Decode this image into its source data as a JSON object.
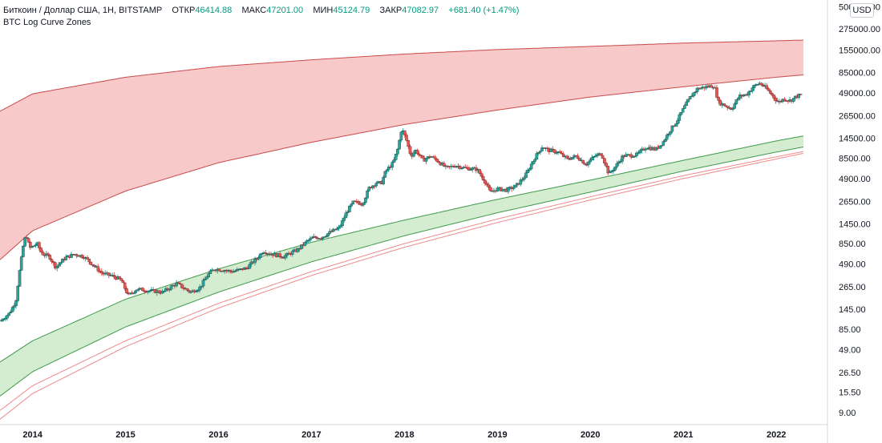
{
  "header": {
    "symbol": "Биткоин / Доллар США, 1Н, BITSTAMP",
    "open_label": "ОТКР",
    "open_value": "46414.88",
    "high_label": "МАКС",
    "high_value": "47201.00",
    "low_label": "МИН",
    "low_value": "45124.79",
    "close_label": "ЗАКР",
    "close_value": "47082.97",
    "change": "+681.40 (+1.47%)",
    "indicator": "BTC Log Curve Zones"
  },
  "currency_button": "USD",
  "colors": {
    "up": "#26a69a",
    "down": "#ef5350",
    "candle_border": "#3b3b3b",
    "top_band_fill": "#f7c9c9",
    "top_band_line": "#c94a4a",
    "bottom_band_fill": "#d4ecd0",
    "bottom_band_line": "#3f9a4a",
    "support_lines": "#ee8a8a",
    "axis_text": "#131722"
  },
  "chart_data": {
    "type": "candlestick",
    "y_scale": "log",
    "ylim": [
      6.5,
      600000
    ],
    "xlim": [
      2013.65,
      2022.55
    ],
    "y_ticks": [
      "500000.00",
      "275000.00",
      "155000.00",
      "85000.00",
      "49000.00",
      "26500.00",
      "14500.00",
      "8500.00",
      "4900.00",
      "2650.00",
      "1450.00",
      "850.00",
      "490.00",
      "265.00",
      "145.00",
      "85.00",
      "49.00",
      "26.50",
      "15.50",
      "9.00"
    ],
    "x_ticks": [
      "2014",
      "2015",
      "2016",
      "2017",
      "2018",
      "2019",
      "2020",
      "2021",
      "2022"
    ],
    "price_path": [
      [
        2013.65,
        105
      ],
      [
        2013.75,
        130
      ],
      [
        2013.82,
        180
      ],
      [
        2013.86,
        400
      ],
      [
        2013.9,
        800
      ],
      [
        2013.93,
        1100
      ],
      [
        2013.97,
        750
      ],
      [
        2014.05,
        850
      ],
      [
        2014.1,
        650
      ],
      [
        2014.18,
        600
      ],
      [
        2014.25,
        450
      ],
      [
        2014.35,
        580
      ],
      [
        2014.45,
        640
      ],
      [
        2014.55,
        600
      ],
      [
        2014.65,
        480
      ],
      [
        2014.75,
        380
      ],
      [
        2014.85,
        360
      ],
      [
        2014.95,
        320
      ],
      [
        2015.03,
        210
      ],
      [
        2015.12,
        250
      ],
      [
        2015.25,
        240
      ],
      [
        2015.4,
        230
      ],
      [
        2015.5,
        270
      ],
      [
        2015.55,
        290
      ],
      [
        2015.7,
        230
      ],
      [
        2015.8,
        260
      ],
      [
        2015.88,
        360
      ],
      [
        2015.95,
        430
      ],
      [
        2016.05,
        420
      ],
      [
        2016.15,
        400
      ],
      [
        2016.3,
        440
      ],
      [
        2016.42,
        580
      ],
      [
        2016.48,
        700
      ],
      [
        2016.55,
        650
      ],
      [
        2016.7,
        600
      ],
      [
        2016.85,
        720
      ],
      [
        2016.95,
        900
      ],
      [
        2017.02,
        1000
      ],
      [
        2017.1,
        1000
      ],
      [
        2017.2,
        1150
      ],
      [
        2017.3,
        1300
      ],
      [
        2017.38,
        2000
      ],
      [
        2017.45,
        2600
      ],
      [
        2017.55,
        2500
      ],
      [
        2017.62,
        3800
      ],
      [
        2017.7,
        4400
      ],
      [
        2017.75,
        4300
      ],
      [
        2017.8,
        6000
      ],
      [
        2017.88,
        7500
      ],
      [
        2017.93,
        11000
      ],
      [
        2017.97,
        19000
      ],
      [
        2018.02,
        14000
      ],
      [
        2018.07,
        9000
      ],
      [
        2018.12,
        10500
      ],
      [
        2018.2,
        8000
      ],
      [
        2018.28,
        9000
      ],
      [
        2018.35,
        8000
      ],
      [
        2018.45,
        6500
      ],
      [
        2018.55,
        7000
      ],
      [
        2018.65,
        6500
      ],
      [
        2018.78,
        6300
      ],
      [
        2018.88,
        4300
      ],
      [
        2018.92,
        3400
      ],
      [
        2019.0,
        3700
      ],
      [
        2019.1,
        3600
      ],
      [
        2019.2,
        4000
      ],
      [
        2019.3,
        5300
      ],
      [
        2019.4,
        8500
      ],
      [
        2019.48,
        11500
      ],
      [
        2019.55,
        10500
      ],
      [
        2019.65,
        10000
      ],
      [
        2019.75,
        8300
      ],
      [
        2019.85,
        9000
      ],
      [
        2019.95,
        7200
      ],
      [
        2020.05,
        9000
      ],
      [
        2020.12,
        9600
      ],
      [
        2020.2,
        5500
      ],
      [
        2020.28,
        7000
      ],
      [
        2020.35,
        9000
      ],
      [
        2020.5,
        9300
      ],
      [
        2020.6,
        11500
      ],
      [
        2020.7,
        10700
      ],
      [
        2020.78,
        13000
      ],
      [
        2020.85,
        17500
      ],
      [
        2020.93,
        23000
      ],
      [
        2021.0,
        32000
      ],
      [
        2021.08,
        45000
      ],
      [
        2021.15,
        55000
      ],
      [
        2021.25,
        58000
      ],
      [
        2021.33,
        60000
      ],
      [
        2021.38,
        38000
      ],
      [
        2021.45,
        35000
      ],
      [
        2021.52,
        32000
      ],
      [
        2021.6,
        45000
      ],
      [
        2021.68,
        47000
      ],
      [
        2021.75,
        58000
      ],
      [
        2021.82,
        64000
      ],
      [
        2021.88,
        57000
      ],
      [
        2021.95,
        47000
      ],
      [
        2022.02,
        38000
      ],
      [
        2022.08,
        42000
      ],
      [
        2022.15,
        40000
      ],
      [
        2022.22,
        45000
      ],
      [
        2022.28,
        47083
      ]
    ],
    "bands": {
      "top_upper": [
        [
          2013.65,
          30000
        ],
        [
          2014.0,
          48000
        ],
        [
          2015.0,
          75000
        ],
        [
          2016.0,
          100000
        ],
        [
          2017.0,
          120000
        ],
        [
          2018.0,
          140000
        ],
        [
          2019.0,
          158000
        ],
        [
          2020.0,
          172000
        ],
        [
          2021.0,
          188000
        ],
        [
          2022.0,
          200000
        ],
        [
          2022.3,
          204000
        ]
      ],
      "top_lower": [
        [
          2013.65,
          550
        ],
        [
          2014.0,
          1200
        ],
        [
          2015.0,
          3500
        ],
        [
          2016.0,
          7500
        ],
        [
          2017.0,
          13000
        ],
        [
          2018.0,
          21000
        ],
        [
          2019.0,
          31000
        ],
        [
          2020.0,
          44000
        ],
        [
          2021.0,
          58000
        ],
        [
          2022.0,
          75000
        ],
        [
          2022.3,
          80000
        ]
      ],
      "bottom_upper": [
        [
          2013.65,
          35
        ],
        [
          2014.0,
          62
        ],
        [
          2015.0,
          190
        ],
        [
          2016.0,
          430
        ],
        [
          2017.0,
          880
        ],
        [
          2018.0,
          1600
        ],
        [
          2019.0,
          2800
        ],
        [
          2020.0,
          4700
        ],
        [
          2021.0,
          8000
        ],
        [
          2022.0,
          13500
        ],
        [
          2022.3,
          15500
        ]
      ],
      "bottom_lower": [
        [
          2013.65,
          14
        ],
        [
          2014.0,
          27
        ],
        [
          2015.0,
          90
        ],
        [
          2016.0,
          230
        ],
        [
          2017.0,
          520
        ],
        [
          2018.0,
          1050
        ],
        [
          2019.0,
          1950
        ],
        [
          2020.0,
          3400
        ],
        [
          2021.0,
          6000
        ],
        [
          2022.0,
          10000
        ],
        [
          2022.3,
          11500
        ]
      ],
      "support_1": [
        [
          2013.65,
          9.5
        ],
        [
          2014.0,
          18.5
        ],
        [
          2015.0,
          62
        ],
        [
          2016.0,
          170
        ],
        [
          2017.0,
          400
        ],
        [
          2018.0,
          850
        ],
        [
          2019.0,
          1650
        ],
        [
          2020.0,
          3000
        ],
        [
          2021.0,
          5300
        ],
        [
          2022.0,
          8800
        ],
        [
          2022.3,
          10200
        ]
      ],
      "support_2": [
        [
          2013.65,
          7.5
        ],
        [
          2014.0,
          15
        ],
        [
          2015.0,
          53
        ],
        [
          2016.0,
          150
        ],
        [
          2017.0,
          360
        ],
        [
          2018.0,
          770
        ],
        [
          2019.0,
          1500
        ],
        [
          2020.0,
          2750
        ],
        [
          2021.0,
          4900
        ],
        [
          2022.0,
          8300
        ],
        [
          2022.3,
          9700
        ]
      ]
    }
  }
}
